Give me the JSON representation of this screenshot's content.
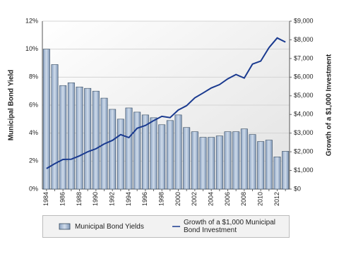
{
  "chart_data": {
    "type": "bar",
    "categories": [
      "1984",
      null,
      "1986",
      null,
      "1988",
      null,
      "1990",
      null,
      "1992",
      null,
      "1994",
      null,
      "1996",
      null,
      "1998",
      null,
      "2000",
      null,
      "2002",
      null,
      "2004",
      null,
      "2006",
      null,
      "2008",
      null,
      "2010",
      null,
      "2012",
      null
    ],
    "series": [
      {
        "name": "Municipal Bond Yields",
        "type": "bar",
        "color": "#a9bcd6",
        "values": [
          10.0,
          8.9,
          7.4,
          7.6,
          7.3,
          7.2,
          7.0,
          6.5,
          5.7,
          5.0,
          5.8,
          5.5,
          5.3,
          5.1,
          4.6,
          4.9,
          5.3,
          4.4,
          4.1,
          3.7,
          3.7,
          3.8,
          4.1,
          4.1,
          4.3,
          3.9,
          3.4,
          3.5,
          2.3,
          2.7
        ]
      },
      {
        "name": "Growth of a $1,000 Municipal Bond Investment",
        "type": "line",
        "axis": "y2",
        "color": "#1a3a8f",
        "values": [
          1100,
          1360,
          1590,
          1600,
          1780,
          2000,
          2160,
          2420,
          2610,
          2920,
          2760,
          3260,
          3410,
          3670,
          3900,
          3830,
          4240,
          4470,
          4890,
          5150,
          5420,
          5600,
          5910,
          6140,
          5950,
          6700,
          6860,
          7580,
          8100,
          7880
        ]
      }
    ],
    "ylabel": "Municipal Bond Yield",
    "y2label": "Growth of a $1,000 Investment",
    "ylim": [
      0,
      12
    ],
    "yticks": [
      {
        "value": 0,
        "label": "0%"
      },
      {
        "value": 2,
        "label": "2%"
      },
      {
        "value": 4,
        "label": "4%"
      },
      {
        "value": 6,
        "label": "6%"
      },
      {
        "value": 8,
        "label": "8%"
      },
      {
        "value": 10,
        "label": "10%"
      },
      {
        "value": 12,
        "label": "12%"
      }
    ],
    "y2lim": [
      0,
      9000
    ],
    "y2ticks": [
      {
        "value": 0,
        "label": "$0"
      },
      {
        "value": 1000,
        "label": "$1,000"
      },
      {
        "value": 2000,
        "label": "$2,000"
      },
      {
        "value": 3000,
        "label": "$3,000"
      },
      {
        "value": 4000,
        "label": "$4,000"
      },
      {
        "value": 5000,
        "label": "$5,000"
      },
      {
        "value": 6000,
        "label": "$6,000"
      },
      {
        "value": 7000,
        "label": "$7,000"
      },
      {
        "value": 8000,
        "label": "$8,000"
      },
      {
        "value": 9000,
        "label": "$9,000"
      }
    ],
    "grid": true,
    "legend": "bottom"
  }
}
